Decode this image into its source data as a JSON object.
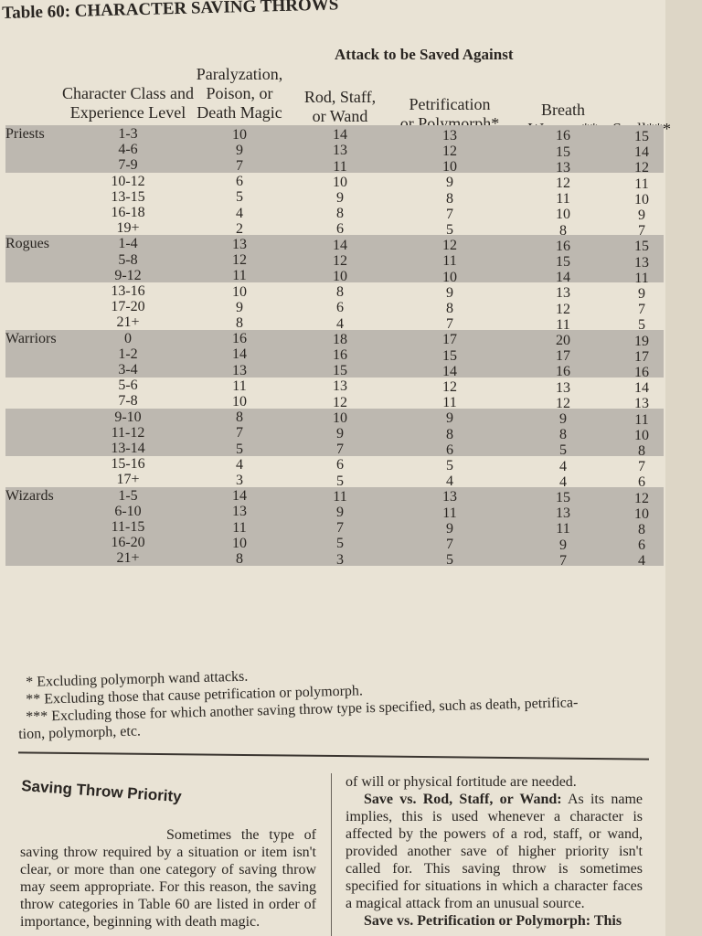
{
  "title": "Table 60: CHARACTER SAVING THROWS",
  "table": {
    "super_header": "Attack to be Saved Against",
    "headers": [
      [
        "Character Class and",
        "Experience Level"
      ],
      [
        "Paralyzation,",
        "Poison, or",
        "Death Magic"
      ],
      [
        "Rod, Staff,",
        "or Wand"
      ],
      [
        "Petrification",
        "or Polymorph*"
      ],
      [
        "Breath",
        "Weapon**"
      ],
      [
        "Spell***"
      ]
    ],
    "groups": [
      {
        "class": "Priests",
        "rows": [
          [
            "1-3",
            10,
            14,
            13,
            16,
            15
          ],
          [
            "4-6",
            9,
            13,
            12,
            15,
            14
          ],
          [
            "7-9",
            7,
            11,
            10,
            13,
            12
          ],
          [
            "10-12",
            6,
            10,
            9,
            12,
            11
          ],
          [
            "13-15",
            5,
            9,
            8,
            11,
            10
          ],
          [
            "16-18",
            4,
            8,
            7,
            10,
            9
          ],
          [
            "19+",
            2,
            6,
            5,
            8,
            7
          ]
        ]
      },
      {
        "class": "Rogues",
        "rows": [
          [
            "1-4",
            13,
            14,
            12,
            16,
            15
          ],
          [
            "5-8",
            12,
            12,
            11,
            15,
            13
          ],
          [
            "9-12",
            11,
            10,
            10,
            14,
            11
          ],
          [
            "13-16",
            10,
            8,
            9,
            13,
            9
          ],
          [
            "17-20",
            9,
            6,
            8,
            12,
            7
          ],
          [
            "21+",
            8,
            4,
            7,
            11,
            5
          ]
        ]
      },
      {
        "class": "Warriors",
        "rows": [
          [
            "0",
            16,
            18,
            17,
            20,
            19
          ],
          [
            "1-2",
            14,
            16,
            15,
            17,
            17
          ],
          [
            "3-4",
            13,
            15,
            14,
            16,
            16
          ],
          [
            "5-6",
            11,
            13,
            12,
            13,
            14
          ],
          [
            "7-8",
            10,
            12,
            11,
            12,
            13
          ],
          [
            "9-10",
            8,
            10,
            9,
            9,
            11
          ],
          [
            "11-12",
            7,
            9,
            8,
            8,
            10
          ],
          [
            "13-14",
            5,
            7,
            6,
            5,
            8
          ],
          [
            "15-16",
            4,
            6,
            5,
            4,
            7
          ],
          [
            "17+",
            3,
            5,
            4,
            4,
            6
          ]
        ]
      },
      {
        "class": "Wizards",
        "rows": [
          [
            "1-5",
            14,
            11,
            13,
            15,
            12
          ],
          [
            "6-10",
            13,
            9,
            11,
            13,
            10
          ],
          [
            "11-15",
            11,
            7,
            9,
            11,
            8
          ],
          [
            "16-20",
            10,
            5,
            7,
            9,
            6
          ],
          [
            "21+",
            8,
            3,
            5,
            7,
            4
          ]
        ]
      }
    ]
  },
  "footnotes": [
    "* Excluding polymorph wand attacks.",
    "** Excluding those that cause petrification or polymorph.",
    "*** Excluding those for which another saving throw type is specified, such as death, petrifica-",
    "tion, polymorph, etc."
  ],
  "section": {
    "heading": "Saving Throw Priority",
    "left": "Sometimes the type of saving throw required by a situation or item isn't clear, or more than one category of saving throw may seem appropriate. For this reason, the saving throw categories in Table 60 are listed in order of importance, beginning with death magic.",
    "right_intro": "of will or physical fortitude are needed.",
    "right_lead": "Save vs. Rod, Staff, or Wand:",
    "right_text": "As its name implies, this is used whenever a character is affected by the powers of a rod, staff, or wand, provided another save of higher priority isn't called for. This saving throw is sometimes specified for situations in which a character faces a magical attack from an unusual source.",
    "right_next": "Save vs. Petrification or Polymorph: This"
  }
}
